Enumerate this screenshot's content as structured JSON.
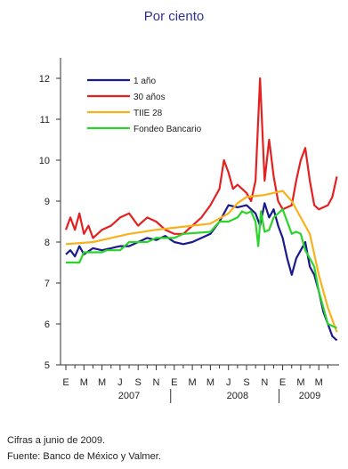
{
  "chart_data": {
    "type": "line",
    "title": "Por ciento",
    "xlabel": "",
    "ylabel": "",
    "ylim": [
      5,
      12.5
    ],
    "yticks": [
      "5",
      "6",
      "7",
      "8",
      "9",
      "10",
      "11",
      "12"
    ],
    "month_ticks": [
      "E",
      "M",
      "M",
      "J",
      "S",
      "N",
      "E",
      "M",
      "M",
      "J",
      "S",
      "N",
      "E",
      "M",
      "M"
    ],
    "year_labels": [
      {
        "label": "2007",
        "month": 7
      },
      {
        "label": "2008",
        "month": 19
      },
      {
        "label": "2009",
        "month": 27
      }
    ],
    "legend_position": "top-left",
    "series": [
      {
        "name": "1 año",
        "color": "#1a1a8c",
        "points": [
          [
            0,
            7.7
          ],
          [
            0.5,
            7.8
          ],
          [
            1,
            7.65
          ],
          [
            1.5,
            7.9
          ],
          [
            2,
            7.7
          ],
          [
            3,
            7.85
          ],
          [
            4,
            7.8
          ],
          [
            5,
            7.85
          ],
          [
            6,
            7.9
          ],
          [
            7,
            7.9
          ],
          [
            8,
            8.0
          ],
          [
            9,
            8.1
          ],
          [
            10,
            8.05
          ],
          [
            11,
            8.15
          ],
          [
            12,
            8.0
          ],
          [
            13,
            7.95
          ],
          [
            14,
            8.0
          ],
          [
            15,
            8.1
          ],
          [
            16,
            8.2
          ],
          [
            17,
            8.5
          ],
          [
            18,
            8.9
          ],
          [
            19,
            8.85
          ],
          [
            20,
            8.9
          ],
          [
            21,
            8.7
          ],
          [
            21.5,
            8.4
          ],
          [
            22,
            8.95
          ],
          [
            22.5,
            8.6
          ],
          [
            23,
            8.8
          ],
          [
            23.5,
            8.4
          ],
          [
            24,
            8.1
          ],
          [
            24.5,
            7.6
          ],
          [
            25,
            7.2
          ],
          [
            25.5,
            7.6
          ],
          [
            26,
            7.8
          ],
          [
            26.5,
            8.0
          ],
          [
            27,
            7.4
          ],
          [
            27.5,
            7.2
          ],
          [
            28,
            6.8
          ],
          [
            28.5,
            6.3
          ],
          [
            29,
            6.0
          ],
          [
            29.5,
            5.7
          ],
          [
            30,
            5.6
          ]
        ]
      },
      {
        "name": "30 años",
        "color": "#e32121",
        "points": [
          [
            0,
            8.3
          ],
          [
            0.5,
            8.6
          ],
          [
            1,
            8.3
          ],
          [
            1.5,
            8.7
          ],
          [
            2,
            8.2
          ],
          [
            2.5,
            8.4
          ],
          [
            3,
            8.1
          ],
          [
            4,
            8.3
          ],
          [
            5,
            8.4
          ],
          [
            6,
            8.6
          ],
          [
            7,
            8.7
          ],
          [
            8,
            8.4
          ],
          [
            9,
            8.6
          ],
          [
            10,
            8.5
          ],
          [
            11,
            8.3
          ],
          [
            12,
            8.2
          ],
          [
            13,
            8.2
          ],
          [
            14,
            8.4
          ],
          [
            15,
            8.6
          ],
          [
            16,
            8.9
          ],
          [
            17,
            9.3
          ],
          [
            17.5,
            10.0
          ],
          [
            18,
            9.7
          ],
          [
            18.5,
            9.3
          ],
          [
            19,
            9.4
          ],
          [
            20,
            9.2
          ],
          [
            20.5,
            9.0
          ],
          [
            21,
            9.5
          ],
          [
            21.5,
            12.0
          ],
          [
            22,
            9.5
          ],
          [
            22.5,
            10.5
          ],
          [
            23,
            9.6
          ],
          [
            23.5,
            9.0
          ],
          [
            24,
            8.8
          ],
          [
            25,
            8.9
          ],
          [
            25.5,
            9.5
          ],
          [
            26,
            10.0
          ],
          [
            26.5,
            10.3
          ],
          [
            27,
            9.5
          ],
          [
            27.5,
            8.9
          ],
          [
            28,
            8.8
          ],
          [
            29,
            8.9
          ],
          [
            29.5,
            9.1
          ],
          [
            30,
            9.6
          ]
        ]
      },
      {
        "name": "TIIE 28",
        "color": "#f7b21b",
        "points": [
          [
            0,
            7.95
          ],
          [
            3,
            8.0
          ],
          [
            5,
            8.1
          ],
          [
            7,
            8.2
          ],
          [
            10,
            8.3
          ],
          [
            12,
            8.35
          ],
          [
            14,
            8.4
          ],
          [
            16,
            8.45
          ],
          [
            18,
            8.7
          ],
          [
            19,
            8.95
          ],
          [
            20,
            9.1
          ],
          [
            22,
            9.15
          ],
          [
            23,
            9.2
          ],
          [
            24,
            9.25
          ],
          [
            25,
            9.0
          ],
          [
            26,
            8.6
          ],
          [
            27,
            8.2
          ],
          [
            28,
            7.2
          ],
          [
            29,
            6.4
          ],
          [
            30,
            5.8
          ]
        ]
      },
      {
        "name": "Fondeo Bancario",
        "color": "#2bd32b",
        "points": [
          [
            0,
            7.5
          ],
          [
            1.5,
            7.5
          ],
          [
            2,
            7.75
          ],
          [
            4,
            7.75
          ],
          [
            4.5,
            7.8
          ],
          [
            6,
            7.8
          ],
          [
            7,
            8.0
          ],
          [
            9,
            8.0
          ],
          [
            10,
            8.1
          ],
          [
            12,
            8.1
          ],
          [
            13,
            8.2
          ],
          [
            16,
            8.25
          ],
          [
            17,
            8.5
          ],
          [
            18,
            8.5
          ],
          [
            19,
            8.6
          ],
          [
            19.5,
            8.75
          ],
          [
            20,
            8.7
          ],
          [
            20.5,
            8.75
          ],
          [
            21,
            8.5
          ],
          [
            21.3,
            7.9
          ],
          [
            21.6,
            8.75
          ],
          [
            22,
            8.25
          ],
          [
            22.5,
            8.3
          ],
          [
            23,
            8.6
          ],
          [
            24,
            8.8
          ],
          [
            24.5,
            8.5
          ],
          [
            25,
            8.2
          ],
          [
            25.5,
            8.25
          ],
          [
            26,
            8.2
          ],
          [
            26.5,
            7.8
          ],
          [
            27,
            7.6
          ],
          [
            27.5,
            7.4
          ],
          [
            28,
            6.8
          ],
          [
            29,
            6.0
          ],
          [
            30,
            5.9
          ]
        ]
      }
    ]
  },
  "footnotes": {
    "line1": "Cifras a junio de 2009.",
    "line2": "Fuente: Banco de México y Valmer."
  }
}
